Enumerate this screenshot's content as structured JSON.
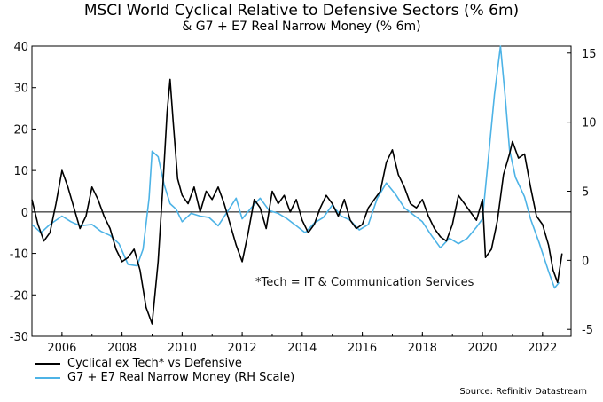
{
  "chart_data": {
    "type": "line",
    "title": "MSCI World Cyclical Relative to Defensive Sectors (% 6m)",
    "subtitle": "& G7 + E7 Real Narrow Money (% 6m)",
    "annotation": "*Tech = IT & Communication Services",
    "source": "Source: Refinitiv Datastream",
    "x_ticks": [
      "2006",
      "2008",
      "2010",
      "2012",
      "2014",
      "2016",
      "2018",
      "2020",
      "2022"
    ],
    "y_left_ticks": [
      "-30",
      "-20",
      "-10",
      "0",
      "10",
      "20",
      "30",
      "40"
    ],
    "y_right_ticks": [
      "-5",
      "0",
      "5",
      "10",
      "15"
    ],
    "ylim_left": [
      -30,
      40
    ],
    "ylim_right": [
      -5.5,
      15.5
    ],
    "xlim": [
      2005.0,
      2022.95
    ],
    "zero_line": true,
    "series": [
      {
        "name": "Cyclical ex Tech* vs Defensive",
        "axis": "left",
        "color": "#000000",
        "points": [
          [
            2005.0,
            3
          ],
          [
            2005.2,
            -3
          ],
          [
            2005.4,
            -7
          ],
          [
            2005.6,
            -5
          ],
          [
            2005.8,
            2
          ],
          [
            2006.0,
            10
          ],
          [
            2006.2,
            6
          ],
          [
            2006.4,
            1
          ],
          [
            2006.6,
            -4
          ],
          [
            2006.8,
            -1
          ],
          [
            2007.0,
            6
          ],
          [
            2007.2,
            3
          ],
          [
            2007.4,
            -1
          ],
          [
            2007.6,
            -4
          ],
          [
            2007.8,
            -9
          ],
          [
            2008.0,
            -12
          ],
          [
            2008.2,
            -11
          ],
          [
            2008.4,
            -9
          ],
          [
            2008.6,
            -14
          ],
          [
            2008.8,
            -23
          ],
          [
            2009.0,
            -27
          ],
          [
            2009.2,
            -12
          ],
          [
            2009.35,
            5
          ],
          [
            2009.5,
            24
          ],
          [
            2009.6,
            32
          ],
          [
            2009.7,
            22
          ],
          [
            2009.85,
            8
          ],
          [
            2010.0,
            4
          ],
          [
            2010.2,
            2
          ],
          [
            2010.4,
            6
          ],
          [
            2010.6,
            0
          ],
          [
            2010.8,
            5
          ],
          [
            2011.0,
            3
          ],
          [
            2011.2,
            6
          ],
          [
            2011.4,
            2
          ],
          [
            2011.6,
            -3
          ],
          [
            2011.8,
            -8
          ],
          [
            2012.0,
            -12
          ],
          [
            2012.2,
            -5
          ],
          [
            2012.4,
            3
          ],
          [
            2012.6,
            1
          ],
          [
            2012.8,
            -4
          ],
          [
            2013.0,
            5
          ],
          [
            2013.2,
            2
          ],
          [
            2013.4,
            4
          ],
          [
            2013.6,
            0
          ],
          [
            2013.8,
            3
          ],
          [
            2014.0,
            -2
          ],
          [
            2014.2,
            -5
          ],
          [
            2014.4,
            -3
          ],
          [
            2014.6,
            1
          ],
          [
            2014.8,
            4
          ],
          [
            2015.0,
            2
          ],
          [
            2015.2,
            -1
          ],
          [
            2015.4,
            3
          ],
          [
            2015.6,
            -2
          ],
          [
            2015.8,
            -4
          ],
          [
            2016.0,
            -3
          ],
          [
            2016.2,
            1
          ],
          [
            2016.4,
            3
          ],
          [
            2016.6,
            5
          ],
          [
            2016.8,
            12
          ],
          [
            2017.0,
            15
          ],
          [
            2017.2,
            9
          ],
          [
            2017.4,
            6
          ],
          [
            2017.6,
            2
          ],
          [
            2017.8,
            1
          ],
          [
            2018.0,
            3
          ],
          [
            2018.2,
            -1
          ],
          [
            2018.4,
            -4
          ],
          [
            2018.6,
            -6
          ],
          [
            2018.8,
            -7
          ],
          [
            2019.0,
            -3
          ],
          [
            2019.2,
            4
          ],
          [
            2019.4,
            2
          ],
          [
            2019.6,
            0
          ],
          [
            2019.8,
            -2
          ],
          [
            2020.0,
            3
          ],
          [
            2020.1,
            -11
          ],
          [
            2020.3,
            -9
          ],
          [
            2020.5,
            -2
          ],
          [
            2020.7,
            9
          ],
          [
            2020.9,
            14
          ],
          [
            2021.0,
            17
          ],
          [
            2021.2,
            13
          ],
          [
            2021.4,
            14
          ],
          [
            2021.6,
            6
          ],
          [
            2021.8,
            -1
          ],
          [
            2022.0,
            -3
          ],
          [
            2022.2,
            -8
          ],
          [
            2022.35,
            -14
          ],
          [
            2022.5,
            -17
          ],
          [
            2022.65,
            -10
          ]
        ]
      },
      {
        "name": "G7 + E7 Real Narrow Money (RH Scale)",
        "axis": "right",
        "color": "#4db3e6",
        "points": [
          [
            2005.0,
            2.6
          ],
          [
            2005.3,
            2.0
          ],
          [
            2005.6,
            2.6
          ],
          [
            2006.0,
            3.2
          ],
          [
            2006.3,
            2.8
          ],
          [
            2006.6,
            2.5
          ],
          [
            2007.0,
            2.6
          ],
          [
            2007.3,
            2.1
          ],
          [
            2007.6,
            1.8
          ],
          [
            2007.9,
            1.2
          ],
          [
            2008.2,
            -0.3
          ],
          [
            2008.5,
            -0.4
          ],
          [
            2008.7,
            0.8
          ],
          [
            2008.9,
            4.5
          ],
          [
            2009.0,
            7.9
          ],
          [
            2009.2,
            7.5
          ],
          [
            2009.4,
            5.5
          ],
          [
            2009.6,
            4.1
          ],
          [
            2009.8,
            3.7
          ],
          [
            2010.0,
            2.8
          ],
          [
            2010.3,
            3.4
          ],
          [
            2010.6,
            3.2
          ],
          [
            2010.9,
            3.1
          ],
          [
            2011.2,
            2.5
          ],
          [
            2011.5,
            3.5
          ],
          [
            2011.8,
            4.5
          ],
          [
            2012.0,
            3.0
          ],
          [
            2012.3,
            3.8
          ],
          [
            2012.6,
            4.5
          ],
          [
            2012.9,
            3.6
          ],
          [
            2013.2,
            3.4
          ],
          [
            2013.5,
            3.0
          ],
          [
            2013.8,
            2.5
          ],
          [
            2014.1,
            2.0
          ],
          [
            2014.4,
            2.7
          ],
          [
            2014.7,
            3.1
          ],
          [
            2015.0,
            4.0
          ],
          [
            2015.3,
            3.2
          ],
          [
            2015.6,
            2.9
          ],
          [
            2015.9,
            2.2
          ],
          [
            2016.2,
            2.6
          ],
          [
            2016.5,
            4.5
          ],
          [
            2016.8,
            5.6
          ],
          [
            2017.1,
            4.8
          ],
          [
            2017.4,
            3.8
          ],
          [
            2017.7,
            3.3
          ],
          [
            2018.0,
            2.8
          ],
          [
            2018.3,
            1.8
          ],
          [
            2018.6,
            0.9
          ],
          [
            2018.9,
            1.6
          ],
          [
            2019.2,
            1.2
          ],
          [
            2019.5,
            1.6
          ],
          [
            2019.8,
            2.4
          ],
          [
            2020.0,
            3.0
          ],
          [
            2020.2,
            7.5
          ],
          [
            2020.4,
            12.0
          ],
          [
            2020.6,
            15.5
          ],
          [
            2020.75,
            12.0
          ],
          [
            2020.9,
            8.0
          ],
          [
            2021.1,
            6.0
          ],
          [
            2021.4,
            4.6
          ],
          [
            2021.6,
            3.0
          ],
          [
            2021.9,
            1.2
          ],
          [
            2022.2,
            -0.8
          ],
          [
            2022.4,
            -2.0
          ],
          [
            2022.55,
            -1.6
          ]
        ]
      }
    ]
  }
}
